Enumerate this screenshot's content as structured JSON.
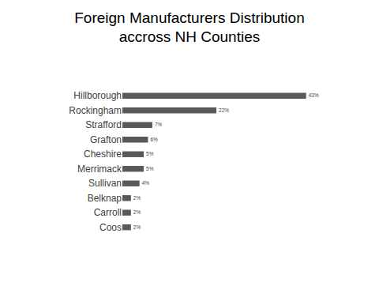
{
  "chart_data": {
    "type": "bar",
    "title": "Foreign Manufacturers Distribution\naccross NH Counties",
    "orientation": "horizontal",
    "categories": [
      "Hillborough",
      "Rockingham",
      "Strafford",
      "Grafton",
      "Cheshire",
      "Merrimack",
      "Sullivan",
      "Belknap",
      "Carroll",
      "Coos"
    ],
    "values": [
      43,
      22,
      7,
      6,
      5,
      5,
      4,
      2,
      2,
      2
    ],
    "value_labels": [
      "43%",
      "22%",
      "7%",
      "6%",
      "5%",
      "5%",
      "4%",
      "2%",
      "2%",
      "2%"
    ],
    "color": "#595959",
    "data_labels": true,
    "tick_labels": "y",
    "grid": false
  }
}
